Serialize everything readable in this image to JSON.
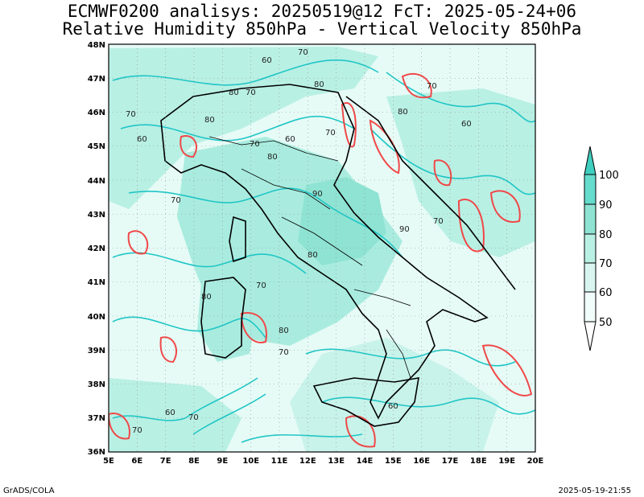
{
  "header": {
    "line1": "ECMWF0200 analisys: 20250519@12 FcT: 2025-05-24+06",
    "line2": "Relative Humidity 850hPa - Vertical Velocity 850hPa"
  },
  "map": {
    "lon_labels": [
      "5E",
      "6E",
      "7E",
      "8E",
      "9E",
      "10E",
      "11E",
      "12E",
      "13E",
      "14E",
      "15E",
      "16E",
      "17E",
      "18E",
      "19E",
      "20E"
    ],
    "lat_labels": [
      "36N",
      "37N",
      "38N",
      "39N",
      "40N",
      "41N",
      "42N",
      "43N",
      "44N",
      "45N",
      "46N",
      "47N",
      "48N"
    ],
    "contour_labels": [
      "60",
      "70",
      "80",
      "90"
    ],
    "colors": {
      "rh_light": "#e6fbf6",
      "rh_mid": "#b9f0e4",
      "rh_dark": "#8fe3d3",
      "rh_line": "#20c6c6",
      "vv_line": "#f04848",
      "border": "#000000"
    }
  },
  "colorbar": {
    "labels": [
      "100",
      "90",
      "80",
      "70",
      "60",
      "50"
    ],
    "colors": [
      "#3fcfc0",
      "#66dccd",
      "#8fe3d3",
      "#b9f0e4",
      "#d8f6ef",
      "#f1fdfa"
    ]
  },
  "footer": {
    "left": "GrADS/COLA",
    "right": "2025-05-19-21:55"
  }
}
